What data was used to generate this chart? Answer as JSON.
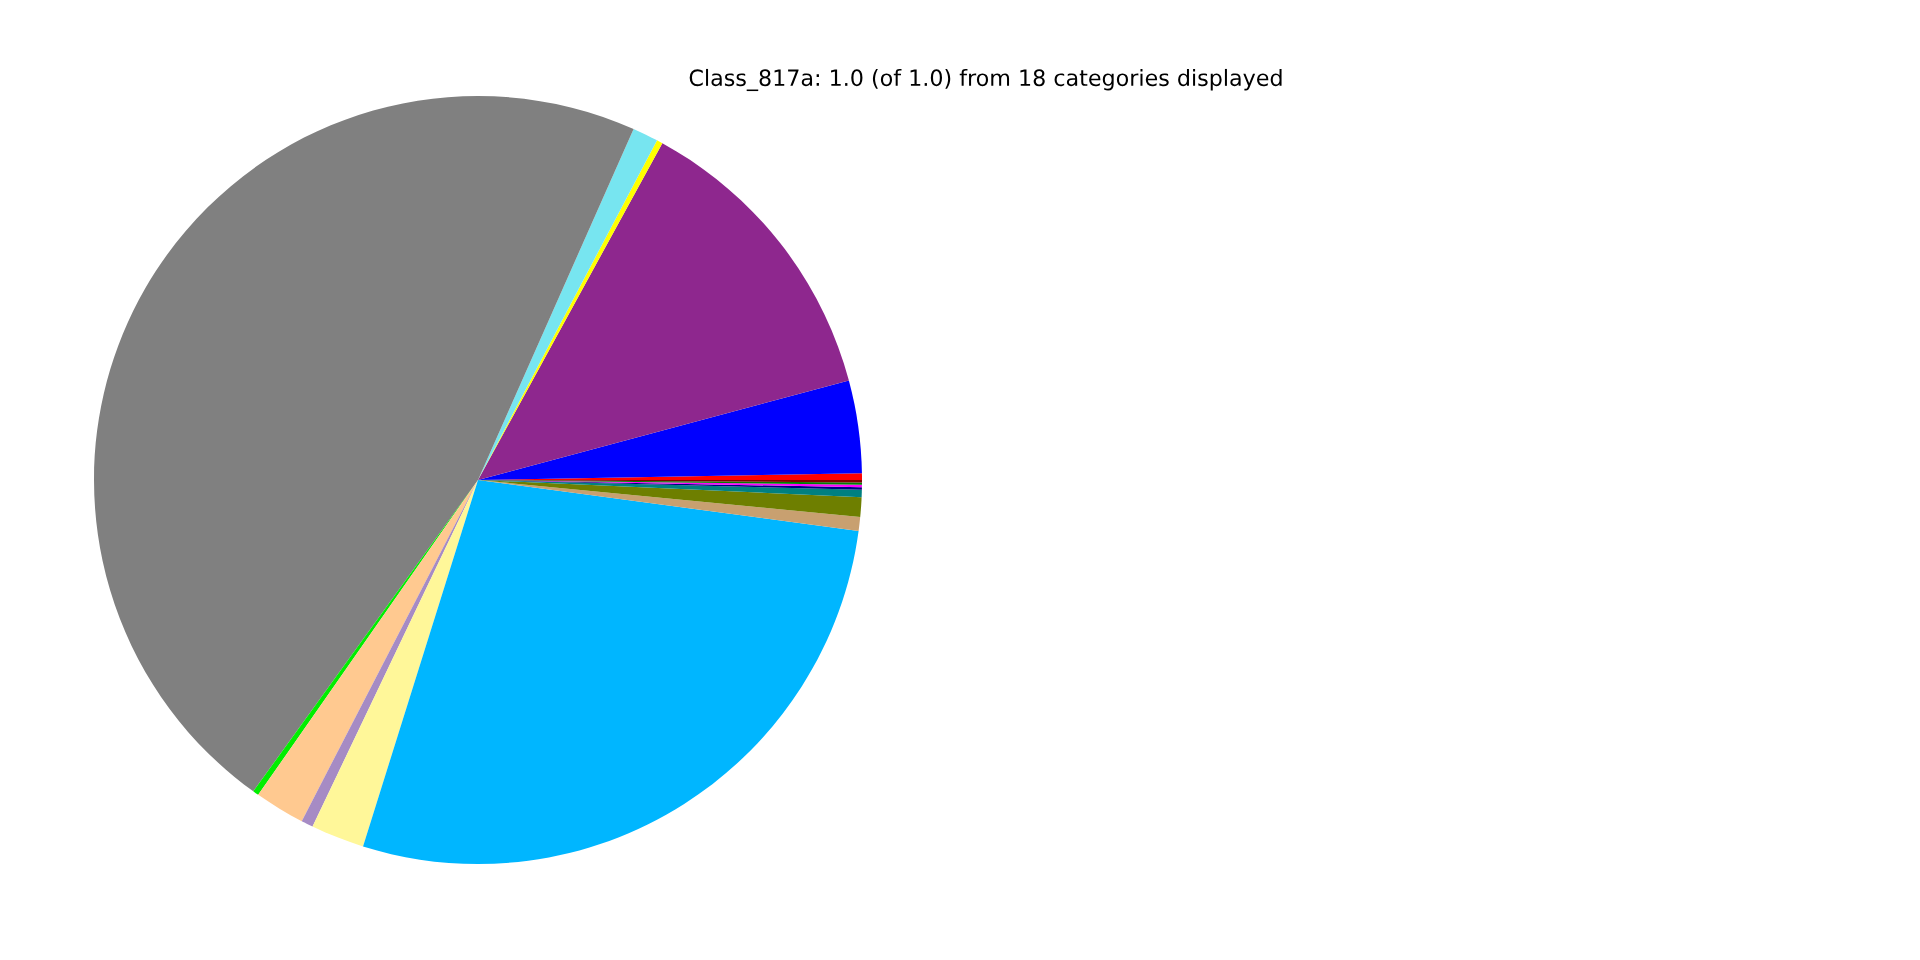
{
  "chart_data": {
    "type": "pie",
    "title": "Class_817a: 1.0 (of 1.0) from 18 categories displayed",
    "categories": [
      null,
      null,
      null,
      null,
      null,
      null,
      null,
      null,
      null,
      null,
      null,
      null,
      null,
      null,
      null,
      null,
      null,
      null
    ],
    "values": [
      0.28,
      3.89,
      12.86,
      0.25,
      1.08,
      46.69,
      0.25,
      2.11,
      0.5,
      2.25,
      27.72,
      0.58,
      0.83,
      0.31,
      0.1,
      0.1,
      0.1,
      0.1
    ],
    "colors": [
      "#ff0000",
      "#0000ff",
      "#8e278e",
      "#ffff00",
      "#77e5f0",
      "#808080",
      "#00ee00",
      "#ffc990",
      "#a68bc4",
      "#fff799",
      "#00b6ff",
      "#c8a070",
      "#6e7f00",
      "#008080",
      "#000080",
      "#ff00ff",
      "#008000",
      "#800000"
    ]
  }
}
